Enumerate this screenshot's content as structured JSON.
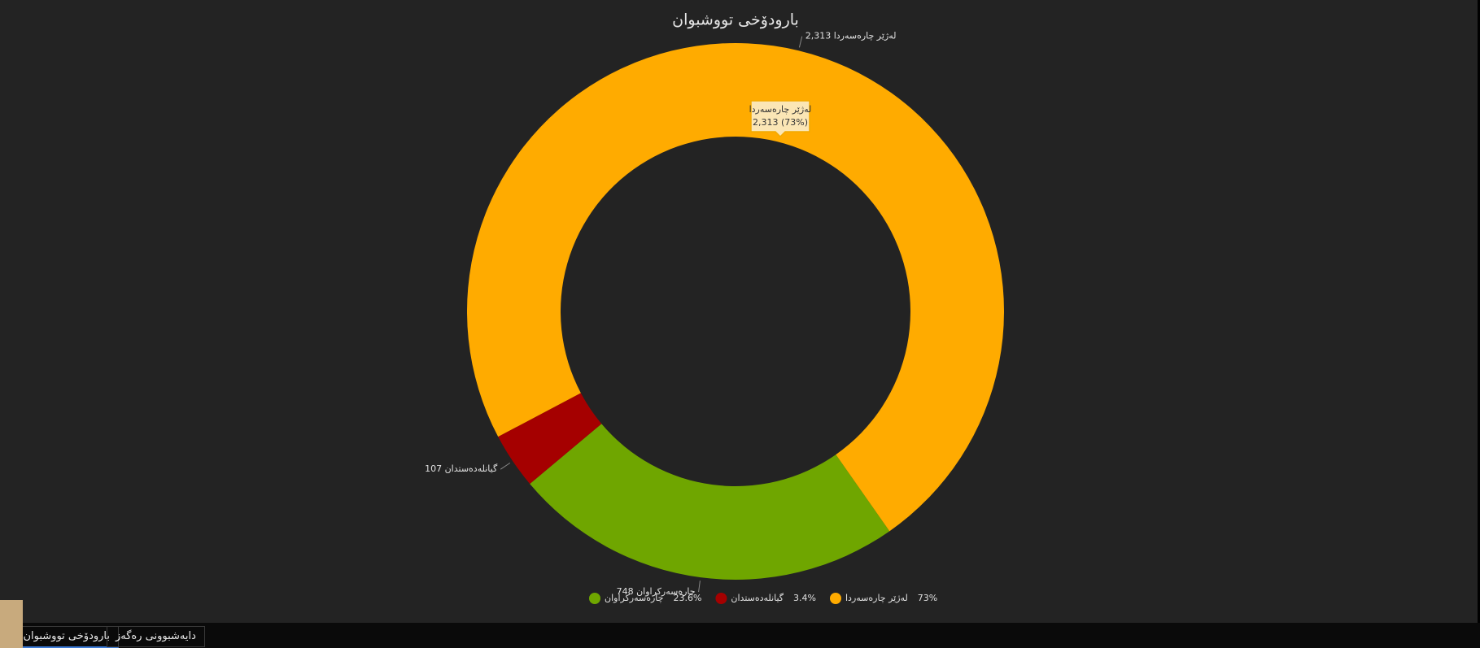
{
  "chart_data": {
    "type": "donut",
    "title": "بارودۆخی تووشبوان",
    "categories": [
      "چارەسەرکراوان",
      "گیانلەدەستدان",
      "لەژێر چارەسەردا"
    ],
    "values": [
      748,
      107,
      2313
    ],
    "value_labels": [
      "748",
      "107",
      "2,313"
    ],
    "percent_labels": [
      "23.6%",
      "3.4%",
      "73%"
    ],
    "colors": [
      "#6fa600",
      "#a50000",
      "#ffab00"
    ],
    "tooltip": {
      "title": "لەژێر چارەسەردا",
      "text": "2,313 (73%)"
    },
    "legend": "bottom"
  },
  "tabs": [
    "بارودۆخی تووشبوان",
    "دایەشبوونی رەگەز"
  ]
}
